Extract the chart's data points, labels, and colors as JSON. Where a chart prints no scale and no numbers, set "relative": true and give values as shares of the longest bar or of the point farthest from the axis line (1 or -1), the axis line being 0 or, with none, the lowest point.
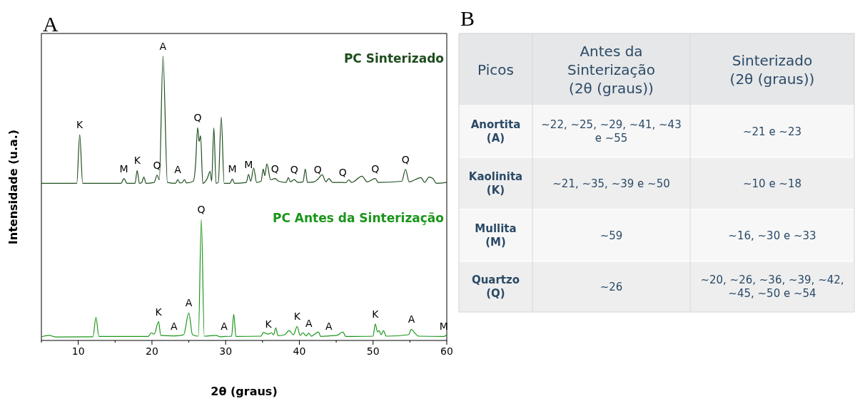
{
  "chart_data": [
    {
      "type": "line",
      "title": "A",
      "xlabel": "2θ (graus)",
      "ylabel": "Intensidade (u.a.)",
      "relative": true,
      "xlim": [
        5,
        60
      ],
      "xticks": [
        {
          "value": 5,
          "label": null
        },
        10,
        {
          "value": 15,
          "label": null
        },
        20,
        {
          "value": 25,
          "label": null
        },
        30,
        {
          "value": 35,
          "label": null
        },
        40,
        {
          "value": 45,
          "label": null
        },
        50,
        {
          "value": 55,
          "label": null
        },
        60
      ],
      "series": [
        {
          "name": "PC Sinterizado",
          "color": "#1f4d1f",
          "x": [
            5,
            9.8,
            10.2,
            10.6,
            15.8,
            16.2,
            16.6,
            17.7,
            18.0,
            18.3,
            18.6,
            18.9,
            19.2,
            20.3,
            20.7,
            21.0,
            21.5,
            22.1,
            23.2,
            23.5,
            23.8,
            24.1,
            24.4,
            24.7,
            25.6,
            25.9,
            26.2,
            26.4,
            26.6,
            26.9,
            27.5,
            27.9,
            28.1,
            28.4,
            28.7,
            29.0,
            29.4,
            29.8,
            30.6,
            30.9,
            31.2,
            32.8,
            33.1,
            33.4,
            33.8,
            34.2,
            34.8,
            35.1,
            35.3,
            35.6,
            36.1,
            36.7,
            37.2,
            38.2,
            38.5,
            38.8,
            39.3,
            39.8,
            40.5,
            40.8,
            41.1,
            42.0,
            42.5,
            43.1,
            43.6,
            44.0,
            44.5,
            45.9,
            46.3,
            46.7,
            47.1,
            48.5,
            49.2,
            50.3,
            50.7,
            53.9,
            54.4,
            54.9,
            56.5,
            57.0,
            57.6,
            58.1,
            58.6,
            60
          ],
          "values": [
            0.553,
            0.553,
            0.724,
            0.553,
            0.553,
            0.57,
            0.553,
            0.553,
            0.598,
            0.553,
            0.555,
            0.575,
            0.553,
            0.556,
            0.582,
            0.565,
            1.0,
            0.556,
            0.553,
            0.566,
            0.554,
            0.555,
            0.566,
            0.554,
            0.56,
            0.612,
            0.749,
            0.7,
            0.72,
            0.553,
            0.57,
            0.595,
            0.56,
            0.748,
            0.553,
            0.556,
            0.786,
            0.553,
            0.553,
            0.568,
            0.553,
            0.556,
            0.584,
            0.56,
            0.607,
            0.556,
            0.56,
            0.603,
            0.58,
            0.621,
            0.565,
            0.57,
            0.56,
            0.556,
            0.573,
            0.558,
            0.566,
            0.556,
            0.558,
            0.603,
            0.556,
            0.558,
            0.567,
            0.583,
            0.558,
            0.57,
            0.556,
            0.556,
            0.555,
            0.565,
            0.556,
            0.578,
            0.558,
            0.57,
            0.556,
            0.56,
            0.602,
            0.558,
            0.573,
            0.556,
            0.575,
            0.57,
            0.553,
            0.556
          ]
        },
        {
          "name": "PC Antes da Sinterização",
          "color": "#1a961a",
          "x": [
            5,
            6.0,
            7,
            12.0,
            12.4,
            12.8,
            19.5,
            19.9,
            20.3,
            20.9,
            21.2,
            23.0,
            24.3,
            25.0,
            25.5,
            26.3,
            26.7,
            27.1,
            28.7,
            29.2,
            29.8,
            30.8,
            31.1,
            31.4,
            34.8,
            35.1,
            35.8,
            36.2,
            36.5,
            36.8,
            37.1,
            38.0,
            38.6,
            39.2,
            39.7,
            40.1,
            40.5,
            40.9,
            41.3,
            41.6,
            42.6,
            42.9,
            44.0,
            45.1,
            45.9,
            46.3,
            50.0,
            50.3,
            50.6,
            50.8,
            51.1,
            51.4,
            51.8,
            54.8,
            55.2,
            55.6,
            56.2,
            59.6,
            60
          ],
          "values": [
            0.013,
            0.018,
            0.012,
            0.013,
            0.081,
            0.014,
            0.014,
            0.027,
            0.022,
            0.066,
            0.018,
            0.016,
            0.02,
            0.097,
            0.02,
            0.015,
            0.426,
            0.015,
            0.018,
            0.013,
            0.014,
            0.015,
            0.092,
            0.014,
            0.015,
            0.028,
            0.022,
            0.027,
            0.02,
            0.044,
            0.017,
            0.02,
            0.035,
            0.02,
            0.049,
            0.018,
            0.027,
            0.016,
            0.026,
            0.015,
            0.03,
            0.014,
            0.016,
            0.018,
            0.03,
            0.014,
            0.015,
            0.058,
            0.03,
            0.035,
            0.02,
            0.034,
            0.015,
            0.02,
            0.039,
            0.028,
            0.015,
            0.014,
            0.02
          ]
        }
      ],
      "annotations": [
        {
          "text": "K",
          "x": 10.2,
          "y": 0.724
        },
        {
          "text": "M",
          "x": 16.2,
          "y": 0.57
        },
        {
          "text": "K",
          "x": 18.0,
          "y": 0.598
        },
        {
          "text": "Q",
          "x": 20.7,
          "y": 0.582
        },
        {
          "text": "A",
          "x": 21.5,
          "y": 1.0
        },
        {
          "text": "A",
          "x": 23.5,
          "y": 0.566
        },
        {
          "text": "Q",
          "x": 26.2,
          "y": 0.749
        },
        {
          "text": "M",
          "x": 30.9,
          "y": 0.568
        },
        {
          "text": "M",
          "x": 33.1,
          "y": 0.584
        },
        {
          "text": "Q",
          "x": 36.7,
          "y": 0.57
        },
        {
          "text": "Q",
          "x": 39.3,
          "y": 0.566
        },
        {
          "text": "Q",
          "x": 42.5,
          "y": 0.567
        },
        {
          "text": "Q",
          "x": 45.9,
          "y": 0.556
        },
        {
          "text": "Q",
          "x": 50.3,
          "y": 0.57
        },
        {
          "text": "Q",
          "x": 54.4,
          "y": 0.602
        },
        {
          "text": "Q",
          "x": 26.7,
          "y": 0.426
        },
        {
          "text": "K",
          "x": 20.9,
          "y": 0.066
        },
        {
          "text": "A",
          "x": 23.0,
          "y": 0.016
        },
        {
          "text": "A",
          "x": 25.0,
          "y": 0.097
        },
        {
          "text": "A",
          "x": 29.8,
          "y": 0.014
        },
        {
          "text": "K",
          "x": 35.8,
          "y": 0.022
        },
        {
          "text": "K",
          "x": 39.7,
          "y": 0.049
        },
        {
          "text": "A",
          "x": 41.3,
          "y": 0.026
        },
        {
          "text": "A",
          "x": 44.0,
          "y": 0.016
        },
        {
          "text": "K",
          "x": 50.3,
          "y": 0.058
        },
        {
          "text": "A",
          "x": 55.2,
          "y": 0.039
        },
        {
          "text": "M",
          "x": 59.6,
          "y": 0.014
        }
      ]
    },
    {
      "type": "other",
      "title": "B",
      "categories": [
        "Picos",
        "Antes da Sinterização (2θ (graus))",
        "Sinterizado (2θ (graus))"
      ],
      "y_categories": [
        "Anortita (A)",
        "Kaolinita (K)",
        "Mullita (M)",
        "Quartzo (Q)"
      ],
      "cell_labels": [
        [
          "~22, ~25, ~29, ~41, ~43 e ~55",
          "~21 e ~23"
        ],
        [
          "~21, ~35, ~39 e ~50",
          "~10 e ~18"
        ],
        [
          "~59",
          "~16, ~30 e ~33"
        ],
        [
          "~26",
          "~20, ~26, ~36, ~39, ~42, ~45, ~50 e ~54"
        ]
      ]
    }
  ]
}
